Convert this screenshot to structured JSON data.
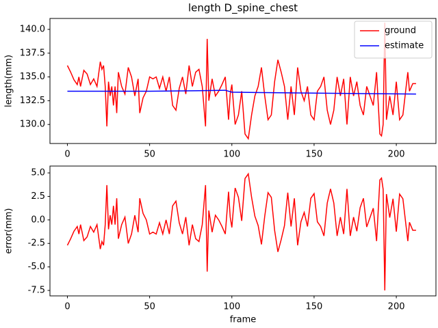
{
  "chart_data": [
    {
      "type": "line",
      "title": "length D_spine_chest",
      "y_label": "length(mm)",
      "x": [
        0,
        2,
        4,
        6,
        7,
        8,
        10,
        12,
        14,
        16,
        18,
        20,
        21,
        22,
        23,
        24,
        25,
        26,
        27,
        28,
        29,
        30,
        31,
        33,
        35,
        37,
        39,
        41,
        43,
        44,
        46,
        48,
        50,
        52,
        54,
        56,
        58,
        60,
        62,
        64,
        66,
        68,
        70,
        72,
        74,
        76,
        78,
        80,
        82,
        84,
        85,
        86,
        88,
        90,
        92,
        94,
        96,
        98,
        99,
        100,
        102,
        104,
        106,
        108,
        110,
        112,
        114,
        116,
        118,
        120,
        122,
        124,
        126,
        128,
        130,
        132,
        134,
        136,
        138,
        140,
        142,
        144,
        146,
        148,
        150,
        152,
        154,
        156,
        158,
        160,
        162,
        164,
        166,
        168,
        170,
        171,
        172,
        174,
        176,
        178,
        180,
        182,
        184,
        186,
        188,
        190,
        191,
        192,
        193,
        194,
        196,
        198,
        200,
        202,
        204,
        206,
        207,
        208,
        210,
        212
      ],
      "series": [
        {
          "name": "ground",
          "color": "#ff0000",
          "values": [
            136.2,
            135.5,
            134.7,
            134.2,
            135.0,
            134.0,
            135.7,
            135.3,
            134.2,
            134.8,
            134.0,
            136.6,
            135.8,
            136.2,
            134.0,
            129.8,
            134.5,
            133.0,
            134.0,
            132.0,
            134.0,
            131.2,
            135.5,
            134.0,
            133.2,
            136.0,
            135.0,
            133.0,
            134.8,
            131.2,
            132.8,
            133.5,
            135.0,
            134.8,
            135.0,
            133.8,
            135.0,
            133.5,
            135.0,
            132.0,
            131.5,
            133.8,
            135.0,
            133.2,
            136.2,
            134.0,
            135.5,
            135.8,
            134.0,
            129.8,
            139.0,
            132.5,
            134.8,
            133.0,
            133.5,
            134.2,
            135.0,
            130.5,
            133.2,
            134.2,
            130.0,
            131.0,
            133.5,
            129.0,
            128.5,
            131.0,
            133.0,
            134.0,
            136.0,
            133.0,
            130.5,
            131.0,
            134.5,
            136.8,
            135.5,
            134.0,
            130.5,
            134.0,
            131.0,
            136.0,
            133.5,
            132.5,
            134.0,
            131.0,
            130.5,
            133.5,
            134.0,
            135.0,
            131.5,
            130.0,
            131.5,
            135.0,
            133.0,
            134.8,
            130.0,
            132.5,
            135.0,
            133.0,
            134.5,
            132.0,
            131.0,
            134.0,
            133.0,
            132.0,
            135.5,
            129.0,
            128.8,
            130.0,
            140.7,
            130.5,
            133.0,
            131.0,
            134.5,
            130.5,
            131.0,
            134.0,
            135.5,
            133.5,
            134.3,
            134.3
          ]
        },
        {
          "name": "estimate",
          "color": "#0000ff",
          "x": [
            0,
            50,
            80,
            96,
            100,
            120,
            150,
            180,
            212
          ],
          "values": [
            133.5,
            133.5,
            133.55,
            133.6,
            133.4,
            133.35,
            133.3,
            133.25,
            133.2
          ]
        }
      ],
      "xlim": [
        -10.6,
        224.1
      ],
      "xticks": [
        0,
        50,
        100,
        150,
        200
      ],
      "ylim": [
        128.0,
        141.15
      ],
      "yticks": [
        {
          "value": 130,
          "label": "130.0"
        },
        132.5,
        {
          "value": 135,
          "label": "135.0"
        },
        137.5,
        {
          "value": 140,
          "label": "140.0"
        }
      ],
      "legend": "upper right"
    },
    {
      "type": "line",
      "x_label": "frame",
      "y_label": "error(mm)",
      "x": [
        0,
        2,
        4,
        6,
        7,
        8,
        10,
        12,
        14,
        16,
        18,
        20,
        21,
        22,
        23,
        24,
        25,
        26,
        27,
        28,
        29,
        30,
        31,
        33,
        35,
        37,
        39,
        41,
        43,
        44,
        46,
        48,
        50,
        52,
        54,
        56,
        58,
        60,
        62,
        64,
        66,
        68,
        70,
        72,
        74,
        76,
        78,
        80,
        82,
        84,
        85,
        86,
        88,
        90,
        92,
        94,
        96,
        98,
        99,
        100,
        102,
        104,
        106,
        108,
        110,
        112,
        114,
        116,
        118,
        120,
        122,
        124,
        126,
        128,
        130,
        132,
        134,
        136,
        138,
        140,
        142,
        144,
        146,
        148,
        150,
        152,
        154,
        156,
        158,
        160,
        162,
        164,
        166,
        168,
        170,
        171,
        172,
        174,
        176,
        178,
        180,
        182,
        184,
        186,
        188,
        190,
        191,
        192,
        193,
        194,
        196,
        198,
        200,
        202,
        204,
        206,
        207,
        208,
        210,
        212
      ],
      "series": [
        {
          "color": "#ff0000",
          "values": [
            -2.7,
            -2.0,
            -1.2,
            -0.7,
            -1.5,
            -0.5,
            -2.2,
            -1.8,
            -0.7,
            -1.3,
            -0.5,
            -3.1,
            -2.3,
            -2.7,
            -0.5,
            3.7,
            -1.0,
            0.5,
            -0.5,
            1.5,
            -0.5,
            2.3,
            -2.0,
            -0.5,
            0.3,
            -2.5,
            -1.5,
            0.5,
            -1.3,
            2.3,
            0.7,
            0,
            -1.5,
            -1.3,
            -1.5,
            -0.3,
            -1.5,
            0,
            -1.5,
            1.5,
            2.0,
            -0.3,
            -1.5,
            0.3,
            -2.7,
            -0.5,
            -2.0,
            -2.3,
            -0.5,
            3.7,
            -5.5,
            1.0,
            -1.3,
            0.5,
            0,
            -0.7,
            -1.5,
            3.0,
            0.3,
            -0.8,
            3.4,
            2.4,
            -0.1,
            4.4,
            4.9,
            2.4,
            0.4,
            -0.6,
            -2.6,
            0.4,
            2.9,
            2.4,
            -1.1,
            -3.4,
            -2.1,
            -0.6,
            2.9,
            -0.7,
            2.3,
            -2.7,
            -0.2,
            0.8,
            -0.7,
            2.3,
            2.8,
            -0.2,
            -0.7,
            -1.7,
            1.8,
            3.3,
            1.8,
            -1.7,
            0.3,
            -1.5,
            3.3,
            0.8,
            -1.7,
            0.3,
            -1.2,
            1.3,
            2.3,
            -0.75,
            0.25,
            1.25,
            -2.25,
            4.25,
            4.45,
            3.25,
            -7.5,
            2.75,
            0.25,
            2.25,
            -1.25,
            2.75,
            2.25,
            -0.75,
            -2.25,
            -0.25,
            -1.1,
            -1.1
          ]
        }
      ],
      "xlim": [
        -10.6,
        224.1
      ],
      "xticks": [
        0,
        50,
        100,
        150,
        200
      ],
      "ylim": [
        -8.08,
        5.73
      ],
      "yticks": [
        -7.5,
        {
          "value": -5,
          "label": "-5.0"
        },
        -2.5,
        {
          "value": 0,
          "label": "0.0"
        },
        2.5,
        {
          "value": 5,
          "label": "5.0"
        }
      ]
    }
  ]
}
